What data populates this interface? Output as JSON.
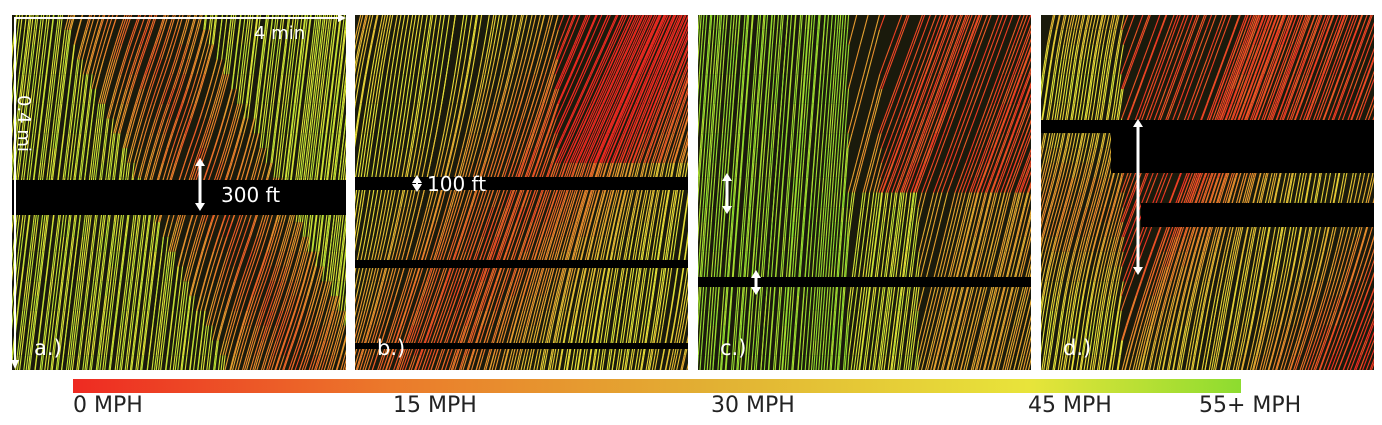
{
  "chart_data": {
    "type": "heatmap",
    "description_type": "time-space trajectory diagrams",
    "panels": [
      {
        "label": "a.)",
        "gap_label": "300 ft",
        "time_axis_label": "4 min",
        "space_axis_label": "0.4 mi"
      },
      {
        "label": "b.)",
        "gap_label": "100 ft"
      },
      {
        "label": "c.)",
        "gap_label": ""
      },
      {
        "label": "d.)",
        "gap_label": ""
      }
    ],
    "colorbar": {
      "ticks": [
        "0 MPH",
        "15 MPH",
        "30 MPH",
        "45 MPH",
        "55+ MPH"
      ],
      "values": [
        0,
        15,
        30,
        45,
        55
      ],
      "colors": [
        "#ee2a22",
        "#eb7a2b",
        "#e2b033",
        "#e8e43a",
        "#8ddc2f"
      ]
    }
  }
}
